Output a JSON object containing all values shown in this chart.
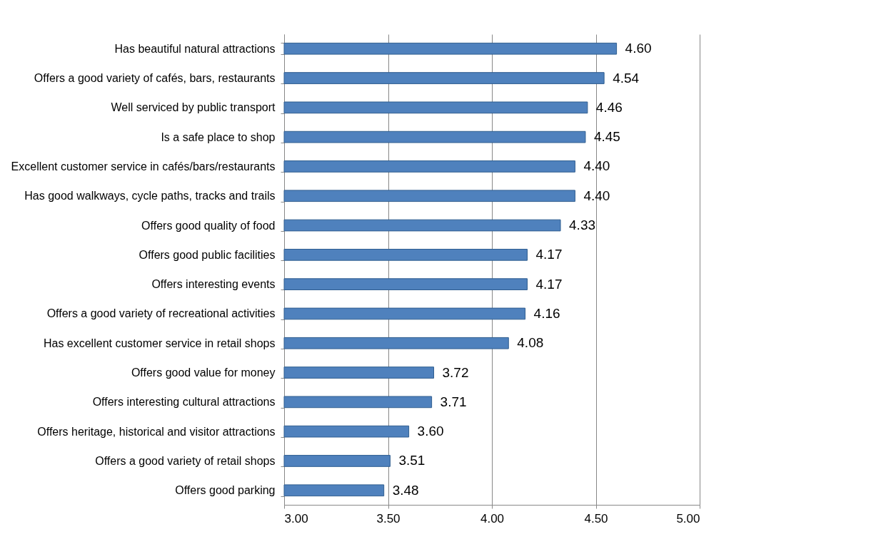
{
  "chart_data": {
    "type": "bar",
    "orientation": "horizontal",
    "categories": [
      "Has beautiful natural attractions",
      "Offers a good variety of cafés, bars, restaurants",
      "Well serviced by public transport",
      "Is a safe place to shop",
      "Excellent customer service in  cafés/bars/restaurants",
      "Has good walkways, cycle paths, tracks and trails",
      "Offers good quality of food",
      "Offers good public facilities",
      "Offers interesting events ",
      "Offers a good variety of recreational activities",
      "Has excellent customer service in retail shops",
      "Offers good value for money",
      "Offers interesting cultural attractions ",
      "Offers heritage, historical and visitor attractions ",
      "Offers a good variety of retail shops",
      "Offers good parking"
    ],
    "values": [
      4.6,
      4.54,
      4.46,
      4.45,
      4.4,
      4.4,
      4.33,
      4.17,
      4.17,
      4.16,
      4.08,
      3.72,
      3.71,
      3.6,
      3.51,
      3.48
    ],
    "value_labels": [
      "4.60",
      "4.54",
      "4.46",
      "4.45",
      "4.40",
      "4.40",
      "4.33",
      "4.17",
      "4.17",
      "4.16",
      "4.08",
      "3.72",
      "3.71",
      "3.60",
      "3.51",
      "3.48"
    ],
    "color": "#4f81bd",
    "xlim": [
      3,
      5
    ],
    "xticks": [
      {
        "value": 3,
        "label": "3.00"
      },
      {
        "value": 3.5,
        "label": "3.50"
      },
      {
        "value": 4,
        "label": "4.00"
      },
      {
        "value": 4.5,
        "label": "4.50"
      },
      {
        "value": 5,
        "label": "5.00"
      }
    ],
    "grid": "x"
  }
}
